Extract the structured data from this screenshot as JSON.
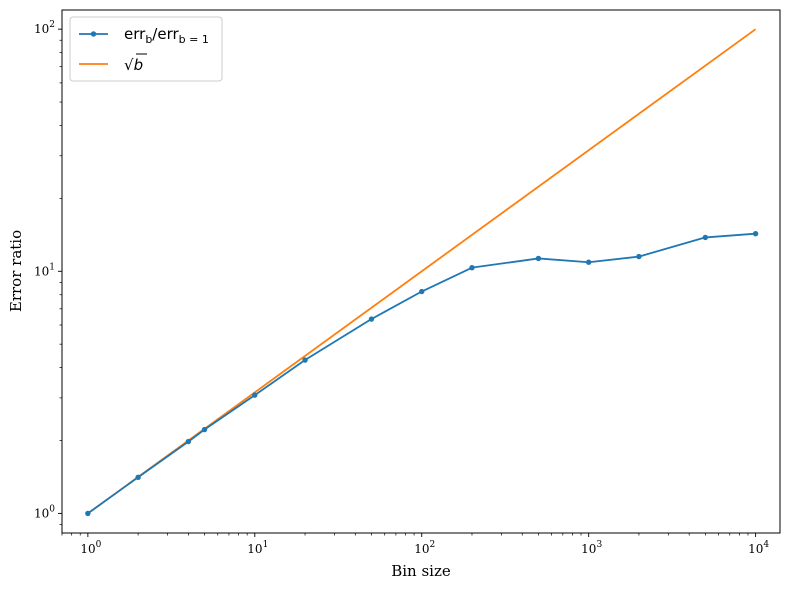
{
  "chart_data": {
    "type": "line",
    "xlabel": "Bin size",
    "ylabel": "Error ratio",
    "xscale": "log",
    "yscale": "log",
    "xlim": [
      0.7,
      14000
    ],
    "ylim": [
      0.83,
      120
    ],
    "grid": false,
    "legend_position": "top-left",
    "x_ticks": [
      {
        "value": 1,
        "base": "10",
        "exp": "0"
      },
      {
        "value": 10,
        "base": "10",
        "exp": "1"
      },
      {
        "value": 100,
        "base": "10",
        "exp": "2"
      },
      {
        "value": 1000,
        "base": "10",
        "exp": "3"
      },
      {
        "value": 10000,
        "base": "10",
        "exp": "4"
      }
    ],
    "y_ticks": [
      {
        "value": 1,
        "base": "10",
        "exp": "0"
      },
      {
        "value": 10,
        "base": "10",
        "exp": "1"
      },
      {
        "value": 100,
        "base": "10",
        "exp": "2"
      }
    ],
    "series": [
      {
        "legend": {
          "main": "err",
          "sub1": "b",
          "mid": "/err",
          "sub2": "b = 1"
        },
        "color": "#1f77b4",
        "marker": "circle",
        "x": [
          1,
          2,
          4,
          5,
          10,
          20,
          50,
          100,
          200,
          500,
          1000,
          2000,
          5000,
          10000
        ],
        "y": [
          1.0,
          1.41,
          1.98,
          2.22,
          3.08,
          4.3,
          6.35,
          8.25,
          10.35,
          11.3,
          10.9,
          11.5,
          13.8,
          14.3
        ]
      },
      {
        "legend": {
          "main": "√",
          "arg": "b"
        },
        "color": "#ff7f0e",
        "marker": "none",
        "x": [
          1,
          10000
        ],
        "y": [
          1,
          100
        ]
      }
    ]
  }
}
